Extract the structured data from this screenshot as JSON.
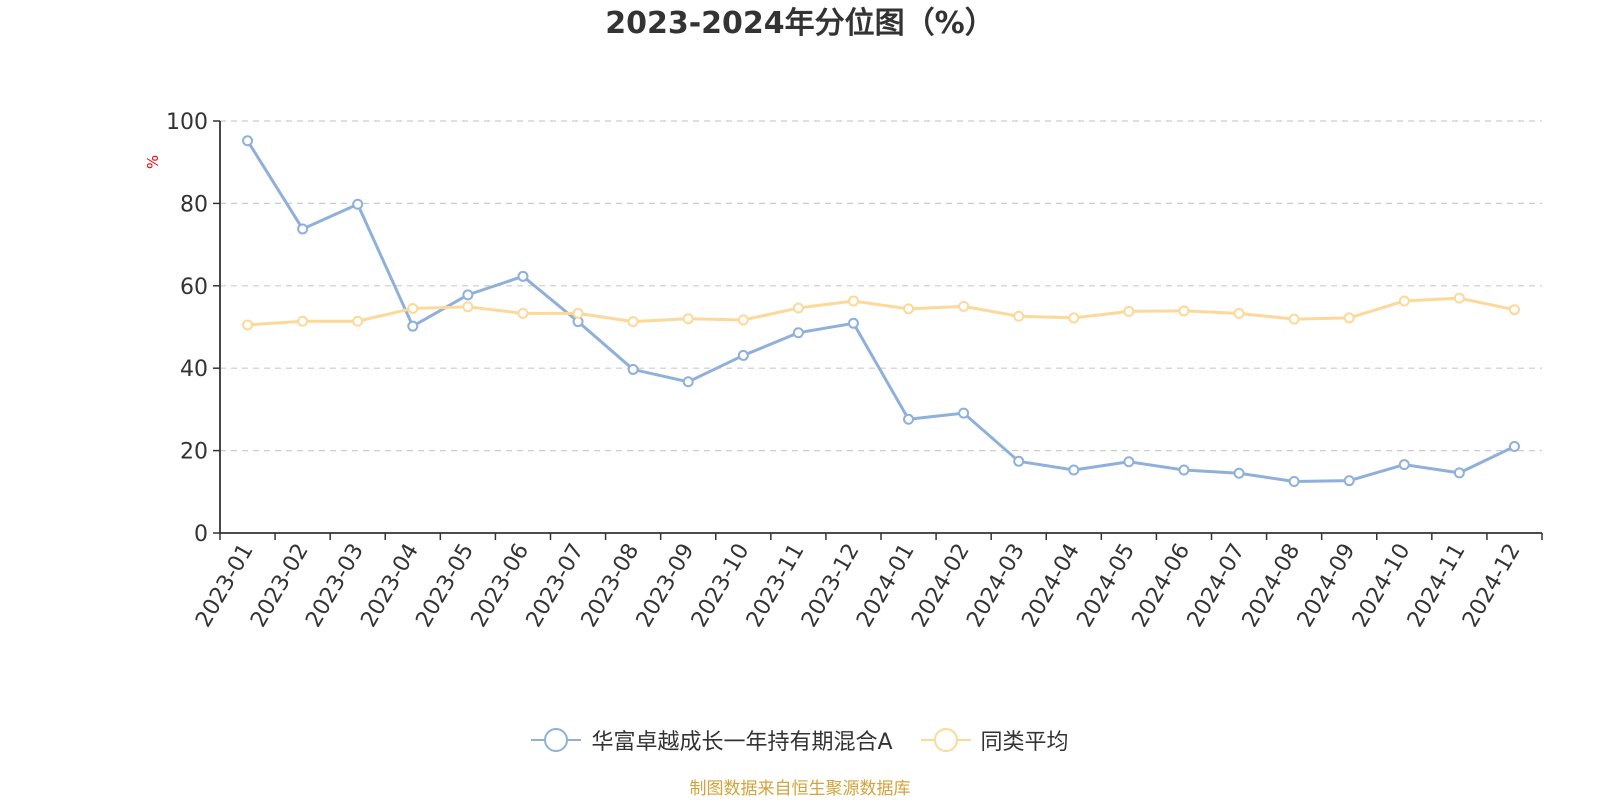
{
  "chart_data": {
    "type": "line",
    "title": "2023-2024年分位图（%）",
    "ylabel": "%",
    "ylim": [
      0,
      100
    ],
    "yticks": [
      0,
      20,
      40,
      60,
      80,
      100
    ],
    "grid": true,
    "legend_position": "bottom",
    "categories": [
      "2023-01",
      "2023-02",
      "2023-03",
      "2023-04",
      "2023-05",
      "2023-06",
      "2023-07",
      "2023-08",
      "2023-09",
      "2023-10",
      "2023-11",
      "2023-12",
      "2024-01",
      "2024-02",
      "2024-03",
      "2024-04",
      "2024-05",
      "2024-06",
      "2024-07",
      "2024-08",
      "2024-09",
      "2024-10",
      "2024-11",
      "2024-12"
    ],
    "series": [
      {
        "name": "华富卓越成长一年持有期混合A",
        "color": "#8eb0da",
        "values": [
          95.2,
          73.8,
          79.8,
          50.2,
          57.8,
          62.3,
          51.3,
          39.7,
          36.7,
          43.1,
          48.6,
          50.9,
          27.6,
          29.1,
          17.4,
          15.3,
          17.3,
          15.3,
          14.5,
          12.5,
          12.7,
          16.6,
          14.6,
          21.0
        ]
      },
      {
        "name": "同类平均",
        "color": "#fdd999",
        "values": [
          50.5,
          51.4,
          51.4,
          54.5,
          54.9,
          53.3,
          53.3,
          51.3,
          52.0,
          51.7,
          54.6,
          56.3,
          54.4,
          55.0,
          52.6,
          52.2,
          53.8,
          53.9,
          53.3,
          51.9,
          52.2,
          56.3,
          57.0,
          54.2
        ]
      }
    ]
  },
  "source_note": "制图数据来自恒生聚源数据库",
  "colors": {
    "title": "#333333",
    "axis": "#333333",
    "grid": "#cccccc",
    "ylabel": "#ff0000",
    "source": "#d4a33a"
  }
}
